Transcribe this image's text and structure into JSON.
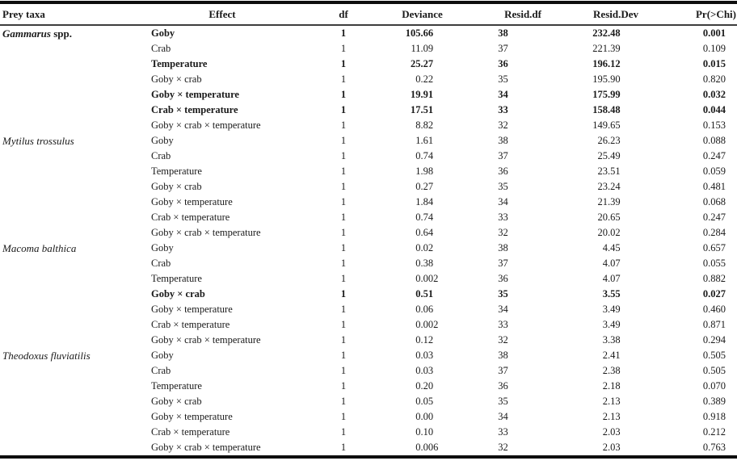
{
  "table": {
    "columns": [
      {
        "key": "prey",
        "label": "Prey taxa"
      },
      {
        "key": "effect",
        "label": "Effect"
      },
      {
        "key": "df",
        "label": "df"
      },
      {
        "key": "deviance",
        "label": "Deviance"
      },
      {
        "key": "resid_df",
        "label": "Resid.df"
      },
      {
        "key": "resid_dev",
        "label": "Resid.Dev"
      },
      {
        "key": "pr",
        "label": "Pr(>Chi)"
      }
    ],
    "groups": [
      {
        "prey_italic": "Gammarus",
        "prey_roman": "spp.",
        "rows": [
          {
            "effect": "Goby",
            "df": "1",
            "deviance": "105.66",
            "resid_df": "38",
            "resid_dev": "232.48",
            "pr": "0.001",
            "bold": true
          },
          {
            "effect": "Crab",
            "df": "1",
            "deviance": "11.09",
            "resid_df": "37",
            "resid_dev": "221.39",
            "pr": "0.109",
            "bold": false
          },
          {
            "effect": "Temperature",
            "df": "1",
            "deviance": "25.27",
            "resid_df": "36",
            "resid_dev": "196.12",
            "pr": "0.015",
            "bold": true
          },
          {
            "effect": "Goby × crab",
            "df": "1",
            "deviance": "0.22",
            "resid_df": "35",
            "resid_dev": "195.90",
            "pr": "0.820",
            "bold": false
          },
          {
            "effect": "Goby × temperature",
            "df": "1",
            "deviance": "19.91",
            "resid_df": "34",
            "resid_dev": "175.99",
            "pr": "0.032",
            "bold": true
          },
          {
            "effect": "Crab × temperature",
            "df": "1",
            "deviance": "17.51",
            "resid_df": "33",
            "resid_dev": "158.48",
            "pr": "0.044",
            "bold": true
          },
          {
            "effect": "Goby × crab × temperature",
            "df": "1",
            "deviance": "8.82",
            "resid_df": "32",
            "resid_dev": "149.65",
            "pr": "0.153",
            "bold": false
          }
        ]
      },
      {
        "prey_italic": "Mytilus trossulus",
        "prey_roman": "",
        "rows": [
          {
            "effect": "Goby",
            "df": "1",
            "deviance": "1.61",
            "resid_df": "38",
            "resid_dev": "26.23",
            "pr": "0.088",
            "bold": false
          },
          {
            "effect": "Crab",
            "df": "1",
            "deviance": "0.74",
            "resid_df": "37",
            "resid_dev": "25.49",
            "pr": "0.247",
            "bold": false
          },
          {
            "effect": "Temperature",
            "df": "1",
            "deviance": "1.98",
            "resid_df": "36",
            "resid_dev": "23.51",
            "pr": "0.059",
            "bold": false
          },
          {
            "effect": "Goby × crab",
            "df": "1",
            "deviance": "0.27",
            "resid_df": "35",
            "resid_dev": "23.24",
            "pr": "0.481",
            "bold": false
          },
          {
            "effect": "Goby × temperature",
            "df": "1",
            "deviance": "1.84",
            "resid_df": "34",
            "resid_dev": "21.39",
            "pr": "0.068",
            "bold": false
          },
          {
            "effect": "Crab × temperature",
            "df": "1",
            "deviance": "0.74",
            "resid_df": "33",
            "resid_dev": "20.65",
            "pr": "0.247",
            "bold": false
          },
          {
            "effect": "Goby × crab × temperature",
            "df": "1",
            "deviance": "0.64",
            "resid_df": "32",
            "resid_dev": "20.02",
            "pr": "0.284",
            "bold": false
          }
        ]
      },
      {
        "prey_italic": "Macoma balthica",
        "prey_roman": "",
        "rows": [
          {
            "effect": "Goby",
            "df": "1",
            "deviance": "0.02",
            "resid_df": "38",
            "resid_dev": "4.45",
            "pr": "0.657",
            "bold": false
          },
          {
            "effect": "Crab",
            "df": "1",
            "deviance": "0.38",
            "resid_df": "37",
            "resid_dev": "4.07",
            "pr": "0.055",
            "bold": false
          },
          {
            "effect": "Temperature",
            "df": "1",
            "deviance": "0.002",
            "resid_df": "36",
            "resid_dev": "4.07",
            "pr": "0.882",
            "bold": false
          },
          {
            "effect": "Goby × crab",
            "df": "1",
            "deviance": "0.51",
            "resid_df": "35",
            "resid_dev": "3.55",
            "pr": "0.027",
            "bold": true
          },
          {
            "effect": "Goby × temperature",
            "df": "1",
            "deviance": "0.06",
            "resid_df": "34",
            "resid_dev": "3.49",
            "pr": "0.460",
            "bold": false
          },
          {
            "effect": "Crab × temperature",
            "df": "1",
            "deviance": "0.002",
            "resid_df": "33",
            "resid_dev": "3.49",
            "pr": "0.871",
            "bold": false
          },
          {
            "effect": "Goby × crab × temperature",
            "df": "1",
            "deviance": "0.12",
            "resid_df": "32",
            "resid_dev": "3.38",
            "pr": "0.294",
            "bold": false
          }
        ]
      },
      {
        "prey_italic": "Theodoxus fluviatilis",
        "prey_roman": "",
        "rows": [
          {
            "effect": "Goby",
            "df": "1",
            "deviance": "0.03",
            "resid_df": "38",
            "resid_dev": "2.41",
            "pr": "0.505",
            "bold": false
          },
          {
            "effect": "Crab",
            "df": "1",
            "deviance": "0.03",
            "resid_df": "37",
            "resid_dev": "2.38",
            "pr": "0.505",
            "bold": false
          },
          {
            "effect": "Temperature",
            "df": "1",
            "deviance": "0.20",
            "resid_df": "36",
            "resid_dev": "2.18",
            "pr": "0.070",
            "bold": false
          },
          {
            "effect": "Goby × crab",
            "df": "1",
            "deviance": "0.05",
            "resid_df": "35",
            "resid_dev": "2.13",
            "pr": "0.389",
            "bold": false
          },
          {
            "effect": "Goby × temperature",
            "df": "1",
            "deviance": "0.00",
            "resid_df": "34",
            "resid_dev": "2.13",
            "pr": "0.918",
            "bold": false
          },
          {
            "effect": "Crab × temperature",
            "df": "1",
            "deviance": "0.10",
            "resid_df": "33",
            "resid_dev": "2.03",
            "pr": "0.212",
            "bold": false
          },
          {
            "effect": "Goby × crab × temperature",
            "df": "1",
            "deviance": "0.006",
            "resid_df": "32",
            "resid_dev": "2.03",
            "pr": "0.763",
            "bold": false
          }
        ]
      }
    ]
  },
  "colors": {
    "text": "#1a1a1a",
    "rule_heavy": "#0d0d0d",
    "rule_light": "#3d3d3d",
    "background": "#ffffff"
  }
}
